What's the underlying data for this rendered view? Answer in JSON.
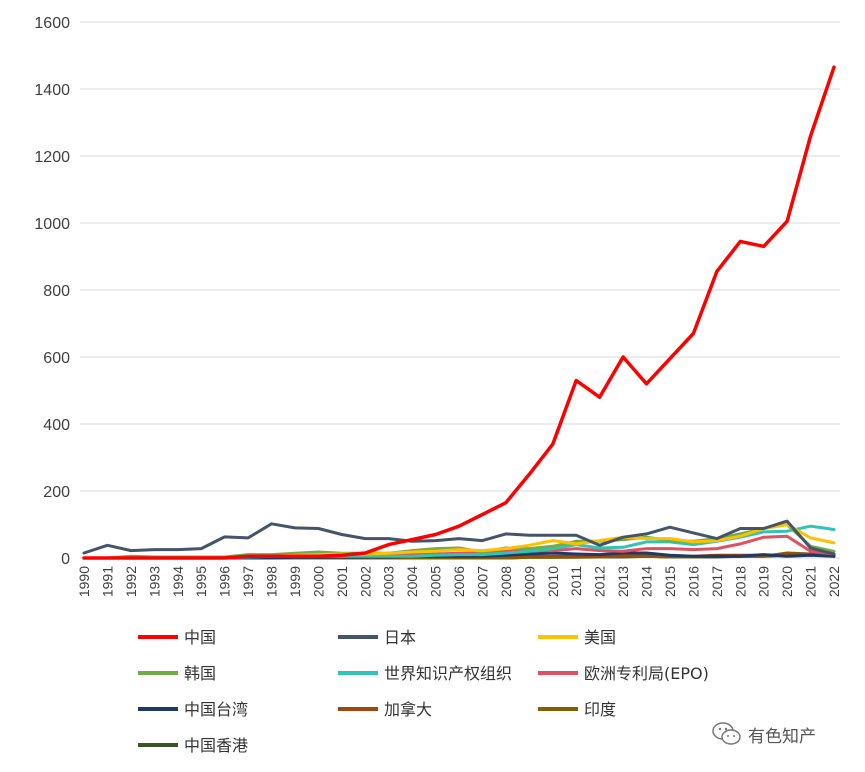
{
  "chart_data": {
    "type": "line",
    "title": "",
    "xlabel": "",
    "ylabel": "",
    "ylim": [
      0,
      1600
    ],
    "yticks": [
      0,
      200,
      400,
      600,
      800,
      1000,
      1200,
      1400,
      1600
    ],
    "grid": "horizontal",
    "legend_position": "bottom",
    "x": [
      "1990",
      "1991",
      "1992",
      "1993",
      "1994",
      "1995",
      "1996",
      "1997",
      "1998",
      "1999",
      "2000",
      "2001",
      "2002",
      "2003",
      "2004",
      "2005",
      "2006",
      "2007",
      "2008",
      "2009",
      "2010",
      "2011",
      "2012",
      "2013",
      "2014",
      "2015",
      "2016",
      "2017",
      "2018",
      "2019",
      "2020",
      "2021",
      "2022"
    ],
    "series": [
      {
        "name": "中国",
        "color": "#ff0000",
        "values": [
          0,
          0,
          0,
          0,
          0,
          0,
          0,
          5,
          5,
          5,
          5,
          8,
          15,
          40,
          55,
          70,
          95,
          130,
          165,
          250,
          340,
          530,
          480,
          600,
          520,
          595,
          670,
          855,
          945,
          930,
          1005,
          1260,
          1465
        ]
      },
      {
        "name": "日本",
        "color": "#44546a",
        "values": [
          15,
          38,
          22,
          25,
          25,
          28,
          63,
          60,
          102,
          90,
          88,
          70,
          58,
          58,
          50,
          52,
          58,
          52,
          72,
          68,
          68,
          68,
          38,
          62,
          72,
          92,
          75,
          58,
          88,
          88,
          110,
          30,
          12
        ]
      },
      {
        "name": "美国",
        "color": "#ffc000",
        "values": [
          0,
          0,
          0,
          0,
          0,
          0,
          0,
          5,
          5,
          8,
          10,
          12,
          12,
          14,
          18,
          20,
          25,
          22,
          28,
          38,
          52,
          42,
          52,
          62,
          58,
          58,
          48,
          52,
          65,
          88,
          100,
          60,
          45
        ]
      },
      {
        "name": "韩国",
        "color": "#70ad47",
        "values": [
          0,
          0,
          5,
          3,
          3,
          3,
          3,
          10,
          10,
          14,
          18,
          14,
          14,
          14,
          22,
          28,
          30,
          18,
          30,
          28,
          35,
          50,
          50,
          55,
          62,
          52,
          50,
          58,
          72,
          88,
          100,
          35,
          20
        ]
      },
      {
        "name": "世界知识产权组织",
        "color": "#2ec4b6",
        "values": [
          0,
          0,
          0,
          0,
          0,
          0,
          0,
          3,
          5,
          5,
          5,
          5,
          5,
          5,
          5,
          8,
          10,
          10,
          15,
          20,
          28,
          40,
          30,
          32,
          48,
          48,
          40,
          50,
          62,
          78,
          80,
          95,
          85
        ]
      },
      {
        "name": "欧洲专利局(EPO)",
        "color": "#e05060",
        "values": [
          0,
          0,
          0,
          0,
          0,
          0,
          0,
          5,
          5,
          8,
          10,
          10,
          10,
          10,
          12,
          12,
          14,
          15,
          20,
          22,
          22,
          28,
          22,
          20,
          28,
          28,
          25,
          28,
          42,
          62,
          65,
          20,
          12
        ]
      },
      {
        "name": "中国台湾",
        "color": "#203864",
        "values": [
          0,
          0,
          0,
          0,
          0,
          0,
          0,
          0,
          0,
          2,
          2,
          2,
          3,
          3,
          5,
          5,
          5,
          5,
          8,
          12,
          15,
          12,
          10,
          15,
          15,
          8,
          5,
          5,
          5,
          10,
          5,
          8,
          5
        ]
      },
      {
        "name": "加拿大",
        "color": "#9e480e",
        "values": [
          0,
          0,
          0,
          0,
          0,
          0,
          0,
          5,
          3,
          3,
          3,
          3,
          5,
          5,
          5,
          5,
          8,
          8,
          8,
          5,
          5,
          5,
          5,
          8,
          10,
          5,
          5,
          8,
          8,
          8,
          10,
          12,
          10
        ]
      },
      {
        "name": "印度",
        "color": "#806000",
        "values": [
          0,
          0,
          0,
          0,
          0,
          0,
          0,
          0,
          0,
          0,
          0,
          0,
          0,
          0,
          0,
          0,
          0,
          0,
          0,
          2,
          2,
          3,
          3,
          5,
          5,
          3,
          3,
          5,
          5,
          5,
          15,
          12,
          8
        ]
      },
      {
        "name": "中国香港",
        "color": "#375623",
        "values": [
          0,
          0,
          0,
          0,
          0,
          0,
          0,
          0,
          0,
          0,
          0,
          0,
          0,
          0,
          0,
          0,
          0,
          0,
          0,
          2,
          2,
          2,
          3,
          3,
          5,
          3,
          3,
          3,
          5,
          5,
          8,
          10,
          5
        ]
      }
    ]
  },
  "watermark": {
    "text": "有色知产",
    "icon": "wechat-icon"
  }
}
